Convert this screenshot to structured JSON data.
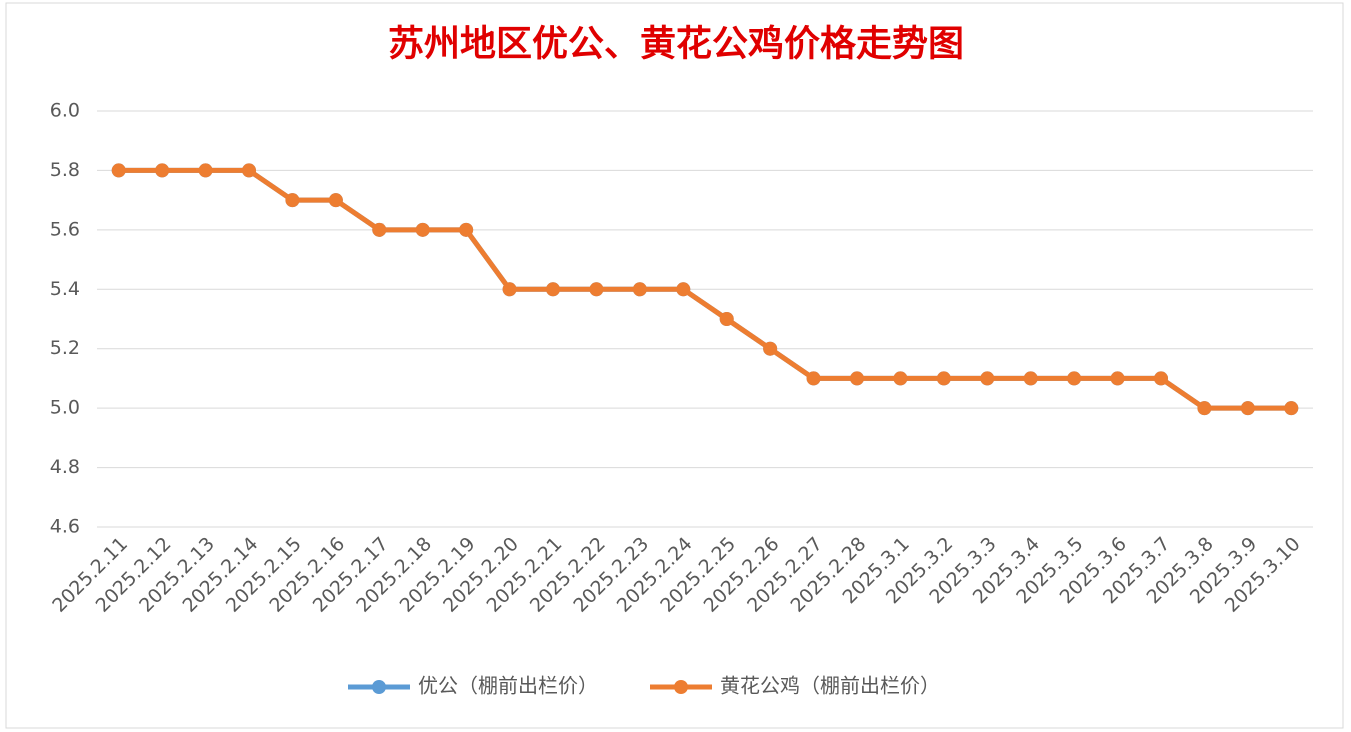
{
  "chart_data": {
    "type": "line",
    "title": "苏州地区优公、黄花公鸡价格走势图",
    "categories": [
      "2025.2.11",
      "2025.2.12",
      "2025.2.13",
      "2025.2.14",
      "2025.2.15",
      "2025.2.16",
      "2025.2.17",
      "2025.2.18",
      "2025.2.19",
      "2025.2.20",
      "2025.2.21",
      "2025.2.22",
      "2025.2.23",
      "2025.2.24",
      "2025.2.25",
      "2025.2.26",
      "2025.2.27",
      "2025.2.28",
      "2025.3.1",
      "2025.3.2",
      "2025.3.3",
      "2025.3.4",
      "2025.3.5",
      "2025.3.6",
      "2025.3.7",
      "2025.3.8",
      "2025.3.9",
      "2025.3.10"
    ],
    "series": [
      {
        "name": "优公（棚前出栏价）",
        "color": "#5b9bd5",
        "values": [
          5.8,
          5.8,
          5.8,
          5.8,
          5.7,
          5.7,
          5.6,
          5.6,
          5.6,
          5.4,
          5.4,
          5.4,
          5.4,
          5.4,
          5.3,
          5.2,
          5.1,
          5.1,
          5.1,
          5.1,
          5.1,
          5.1,
          5.1,
          5.1,
          5.1,
          5.0,
          5.0,
          5.0
        ]
      },
      {
        "name": "黄花公鸡（棚前出栏价）",
        "color": "#ed7d31",
        "values": [
          5.8,
          5.8,
          5.8,
          5.8,
          5.7,
          5.7,
          5.6,
          5.6,
          5.6,
          5.4,
          5.4,
          5.4,
          5.4,
          5.4,
          5.3,
          5.2,
          5.1,
          5.1,
          5.1,
          5.1,
          5.1,
          5.1,
          5.1,
          5.1,
          5.1,
          5.0,
          5.0,
          5.0
        ]
      }
    ],
    "ylim": [
      4.6,
      6.0
    ],
    "yticks": [
      4.6,
      4.8,
      {
        "value": 5,
        "label": "5.0"
      },
      5.2,
      5.4,
      5.6,
      5.8,
      {
        "value": 6,
        "label": "6.0"
      }
    ],
    "grid": true,
    "legend": "bottom"
  }
}
